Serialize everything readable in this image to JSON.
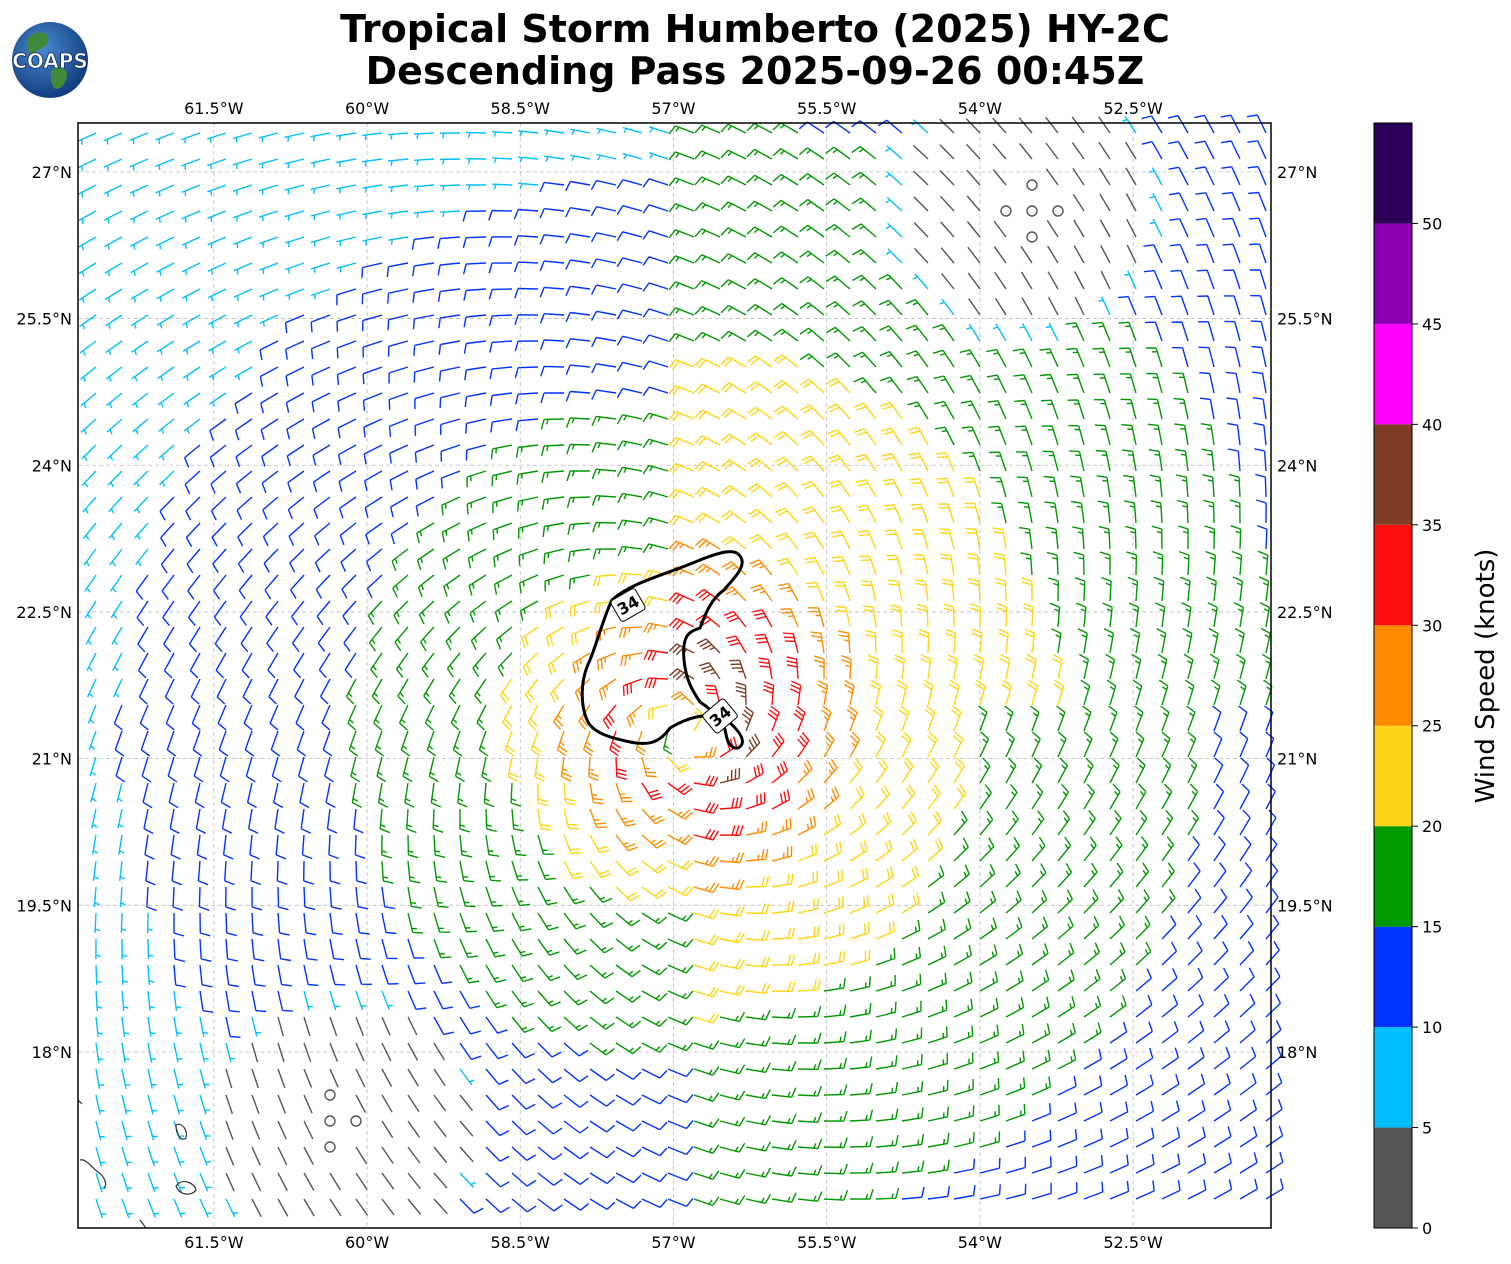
{
  "header": {
    "title_line1": "Tropical Storm Humberto (2025) HY-2C",
    "title_line2": "Descending Pass 2025-09-26 00:45Z",
    "logo_text": "COAPS"
  },
  "map": {
    "lon_labels": [
      "61.5°W",
      "60°W",
      "58.5°W",
      "57°W",
      "55.5°W",
      "54°W",
      "52.5°W"
    ],
    "lat_labels": [
      "27°N",
      "25.5°N",
      "24°N",
      "22.5°N",
      "21°N",
      "19.5°N",
      "18°N"
    ],
    "lon_values": [
      -61.5,
      -60,
      -58.5,
      -57,
      -55.5,
      -54,
      -52.5
    ],
    "lat_values": [
      27,
      25.5,
      24,
      22.5,
      21,
      19.5,
      18
    ],
    "extent": {
      "lon_min": -62.83,
      "lon_max": -51.15,
      "lat_min": 16.2,
      "lat_max": 27.5
    },
    "storm_center": {
      "lon": -56.9,
      "lat": 21.3
    },
    "gale_contour_label": "34",
    "gale_contour_value_knots": 34,
    "calm_areas": [
      {
        "lon": -53.5,
        "lat": 26.6
      },
      {
        "lon": -60.3,
        "lat": 17.3
      }
    ]
  },
  "colorbar": {
    "label": "Wind Speed (knots)",
    "tick_labels": [
      "0",
      "5",
      "10",
      "15",
      "20",
      "25",
      "30",
      "35",
      "40",
      "45",
      "50"
    ],
    "bins": [
      {
        "min": 0,
        "max": 5,
        "color": "#555555"
      },
      {
        "min": 5,
        "max": 10,
        "color": "#00bfff"
      },
      {
        "min": 10,
        "max": 15,
        "color": "#0033ff"
      },
      {
        "min": 15,
        "max": 20,
        "color": "#009900"
      },
      {
        "min": 20,
        "max": 25,
        "color": "#ffd414"
      },
      {
        "min": 25,
        "max": 30,
        "color": "#ff8c00"
      },
      {
        "min": 30,
        "max": 35,
        "color": "#ff0d0d"
      },
      {
        "min": 35,
        "max": 40,
        "color": "#803d26"
      },
      {
        "min": 40,
        "max": 45,
        "color": "#ff00ff"
      },
      {
        "min": 45,
        "max": 50,
        "color": "#8c00b3"
      },
      {
        "min": 50,
        "max": 55,
        "color": "#2a0059"
      }
    ]
  }
}
